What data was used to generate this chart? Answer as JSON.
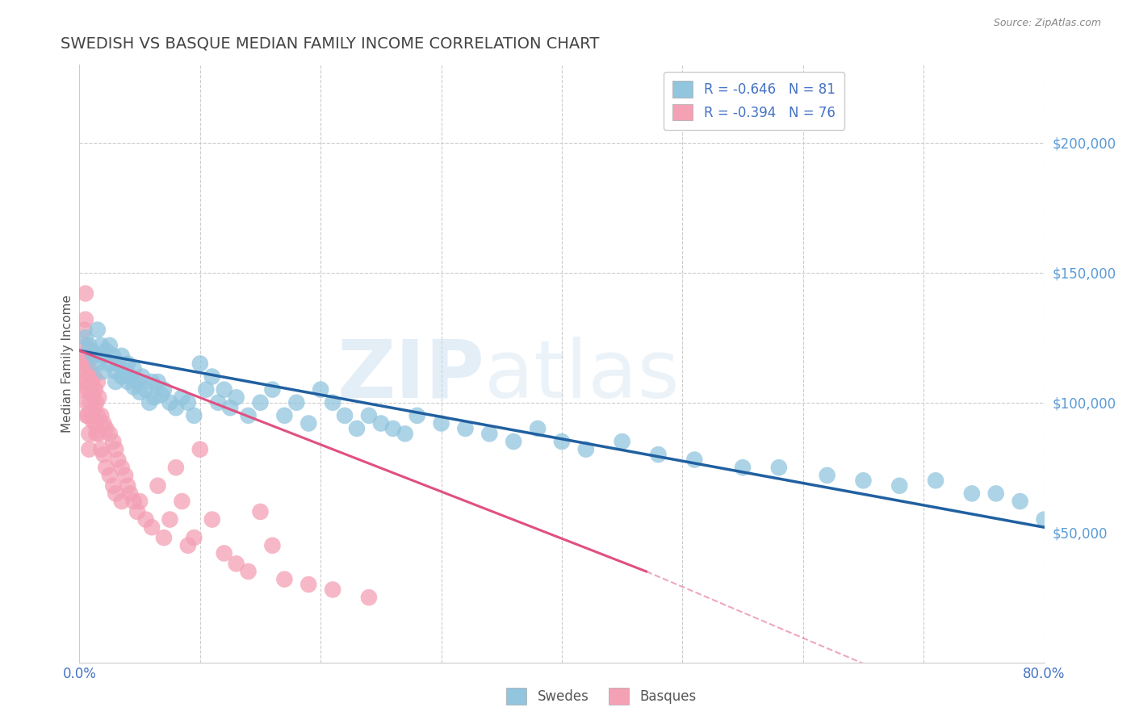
{
  "title": "SWEDISH VS BASQUE MEDIAN FAMILY INCOME CORRELATION CHART",
  "source_text": "Source: ZipAtlas.com",
  "ylabel": "Median Family Income",
  "xlim": [
    0.0,
    0.8
  ],
  "ylim": [
    0,
    230000
  ],
  "yticks": [
    50000,
    100000,
    150000,
    200000
  ],
  "ytick_labels": [
    "$50,000",
    "$100,000",
    "$150,000",
    "$200,000"
  ],
  "xtick_show": [
    "0.0%",
    "80.0%"
  ],
  "xtick_positions": [
    0.0,
    0.8
  ],
  "swedes_R": -0.646,
  "swedes_N": 81,
  "basques_R": -0.394,
  "basques_N": 76,
  "swedes_color": "#92c5de",
  "basques_color": "#f4a0b5",
  "swedes_line_color": "#2060a0",
  "basques_line_color": "#e05080",
  "legend_label_swedes": "Swedes",
  "legend_label_basques": "Basques",
  "watermark_zip": "ZIP",
  "watermark_atlas": "atlas",
  "background_color": "#ffffff",
  "grid_color": "#cccccc",
  "title_color": "#444444",
  "right_yaxis_color": "#5b9bd5",
  "swedes_x": [
    0.005,
    0.008,
    0.01,
    0.012,
    0.015,
    0.015,
    0.018,
    0.02,
    0.02,
    0.022,
    0.025,
    0.025,
    0.028,
    0.03,
    0.03,
    0.032,
    0.035,
    0.035,
    0.038,
    0.04,
    0.04,
    0.042,
    0.045,
    0.045,
    0.048,
    0.05,
    0.052,
    0.055,
    0.058,
    0.06,
    0.062,
    0.065,
    0.068,
    0.07,
    0.075,
    0.08,
    0.085,
    0.09,
    0.095,
    0.1,
    0.105,
    0.11,
    0.115,
    0.12,
    0.125,
    0.13,
    0.14,
    0.15,
    0.16,
    0.17,
    0.18,
    0.19,
    0.2,
    0.21,
    0.22,
    0.23,
    0.24,
    0.25,
    0.26,
    0.27,
    0.28,
    0.3,
    0.32,
    0.34,
    0.36,
    0.38,
    0.4,
    0.42,
    0.45,
    0.48,
    0.51,
    0.55,
    0.58,
    0.62,
    0.65,
    0.68,
    0.71,
    0.74,
    0.76,
    0.78,
    0.8
  ],
  "swedes_y": [
    125000,
    122000,
    120000,
    118000,
    115000,
    128000,
    122000,
    118000,
    112000,
    120000,
    115000,
    122000,
    118000,
    112000,
    108000,
    115000,
    110000,
    118000,
    112000,
    108000,
    115000,
    110000,
    106000,
    113000,
    108000,
    104000,
    110000,
    105000,
    100000,
    108000,
    102000,
    108000,
    103000,
    105000,
    100000,
    98000,
    102000,
    100000,
    95000,
    115000,
    105000,
    110000,
    100000,
    105000,
    98000,
    102000,
    95000,
    100000,
    105000,
    95000,
    100000,
    92000,
    105000,
    100000,
    95000,
    90000,
    95000,
    92000,
    90000,
    88000,
    95000,
    92000,
    90000,
    88000,
    85000,
    90000,
    85000,
    82000,
    85000,
    80000,
    78000,
    75000,
    75000,
    72000,
    70000,
    68000,
    70000,
    65000,
    65000,
    62000,
    55000
  ],
  "basques_x": [
    0.002,
    0.003,
    0.003,
    0.004,
    0.004,
    0.004,
    0.005,
    0.005,
    0.005,
    0.005,
    0.006,
    0.006,
    0.006,
    0.007,
    0.007,
    0.007,
    0.008,
    0.008,
    0.009,
    0.009,
    0.01,
    0.01,
    0.01,
    0.011,
    0.011,
    0.012,
    0.012,
    0.013,
    0.013,
    0.014,
    0.014,
    0.015,
    0.015,
    0.016,
    0.016,
    0.018,
    0.018,
    0.02,
    0.02,
    0.022,
    0.022,
    0.025,
    0.025,
    0.028,
    0.028,
    0.03,
    0.03,
    0.032,
    0.035,
    0.035,
    0.038,
    0.04,
    0.042,
    0.045,
    0.048,
    0.05,
    0.055,
    0.06,
    0.065,
    0.07,
    0.075,
    0.08,
    0.085,
    0.09,
    0.095,
    0.1,
    0.11,
    0.12,
    0.13,
    0.14,
    0.15,
    0.16,
    0.17,
    0.19,
    0.21,
    0.24
  ],
  "basques_y": [
    118000,
    112000,
    105000,
    128000,
    118000,
    108000,
    142000,
    132000,
    122000,
    112000,
    108000,
    100000,
    95000,
    115000,
    105000,
    95000,
    88000,
    82000,
    112000,
    100000,
    118000,
    108000,
    95000,
    103000,
    93000,
    110000,
    98000,
    105000,
    92000,
    100000,
    88000,
    108000,
    95000,
    102000,
    88000,
    95000,
    82000,
    92000,
    80000,
    90000,
    75000,
    88000,
    72000,
    85000,
    68000,
    82000,
    65000,
    78000,
    75000,
    62000,
    72000,
    68000,
    65000,
    62000,
    58000,
    62000,
    55000,
    52000,
    68000,
    48000,
    55000,
    75000,
    62000,
    45000,
    48000,
    82000,
    55000,
    42000,
    38000,
    35000,
    58000,
    45000,
    32000,
    30000,
    28000,
    25000
  ]
}
